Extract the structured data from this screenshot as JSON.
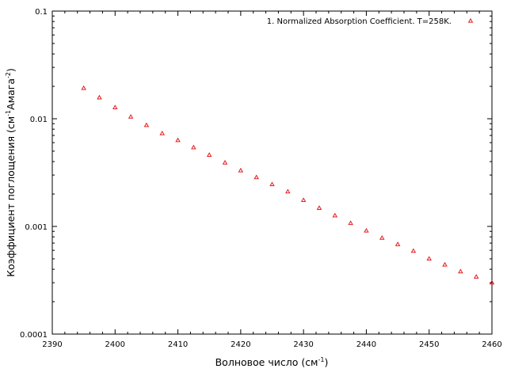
{
  "chart_data": {
    "type": "scatter",
    "series": [
      {
        "name": "1. Normalized Absorption Coefficient. T=258K.",
        "color": "#e41a1c",
        "marker": "triangle",
        "x": [
          2395,
          2397.5,
          2400,
          2402.5,
          2405,
          2407.5,
          2410,
          2412.5,
          2415,
          2417.5,
          2420,
          2422.5,
          2425,
          2427.5,
          2430,
          2432.5,
          2435,
          2437.5,
          2440,
          2442.5,
          2445,
          2447.5,
          2450,
          2452.5,
          2455,
          2457.5,
          2460
        ],
        "y": [
          0.0192,
          0.0157,
          0.0127,
          0.0104,
          0.0087,
          0.0073,
          0.0063,
          0.0054,
          0.0046,
          0.0039,
          0.0033,
          0.00285,
          0.00245,
          0.0021,
          0.00175,
          0.00148,
          0.00126,
          0.00107,
          0.00091,
          0.00078,
          0.00068,
          0.00059,
          0.0005,
          0.00044,
          0.00038,
          0.00034,
          0.0003
        ]
      }
    ],
    "xlabel": {
      "main": "Волновое число (см",
      "sup": "-1",
      "end": ")"
    },
    "ylabel": {
      "main": "Коэффициент поглощения (см",
      "sup1": "-1",
      "mid": "Амага",
      "sup2": "-2",
      "end": ")"
    },
    "xlim": [
      2390,
      2460
    ],
    "ylim": [
      0.0001,
      0.1
    ],
    "yscale": "log",
    "xticks": [
      2390,
      2400,
      2410,
      2420,
      2430,
      2440,
      2450,
      2460
    ],
    "xtick_labels": [
      "2390",
      "2400",
      "2410",
      "2420",
      "2430",
      "2440",
      "2450",
      "2460"
    ],
    "yticks": [
      0.0001,
      0.001,
      0.01,
      0.1
    ],
    "ytick_labels": [
      "0.0001",
      "0.001",
      "0.01",
      "0.1"
    ],
    "grid": false,
    "legend_position": "top-right"
  }
}
